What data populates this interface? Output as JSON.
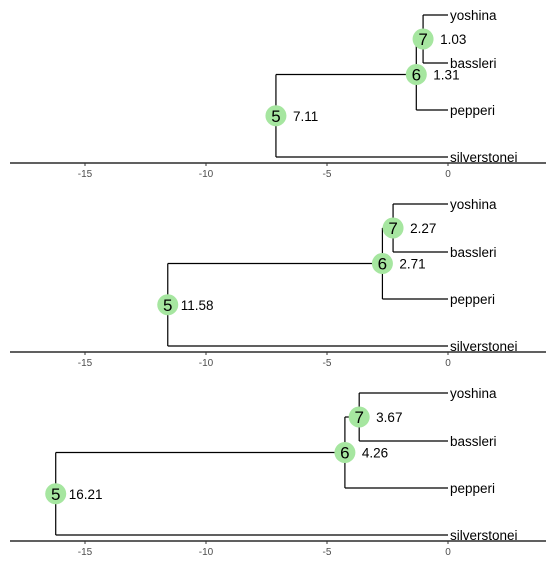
{
  "chart_data": [
    {
      "type": "tree",
      "xaxis": {
        "ticks": [
          -15,
          -10,
          -5,
          0
        ]
      },
      "tips": [
        "yoshina",
        "bassleri",
        "pepperi",
        "silverstonei"
      ],
      "nodes": [
        {
          "id": "7",
          "x": -1.03,
          "value": "1.03",
          "children": [
            "yoshina",
            "bassleri"
          ]
        },
        {
          "id": "6",
          "x": -1.31,
          "value": "1.31",
          "children": [
            "7",
            "pepperi"
          ]
        },
        {
          "id": "5",
          "x": -7.11,
          "value": "7.11",
          "children": [
            "6",
            "silverstonei"
          ]
        }
      ]
    },
    {
      "type": "tree",
      "xaxis": {
        "ticks": [
          -15,
          -10,
          -5,
          0
        ]
      },
      "tips": [
        "yoshina",
        "bassleri",
        "pepperi",
        "silverstonei"
      ],
      "nodes": [
        {
          "id": "7",
          "x": -2.27,
          "value": "2.27",
          "children": [
            "yoshina",
            "bassleri"
          ]
        },
        {
          "id": "6",
          "x": -2.71,
          "value": "2.71",
          "children": [
            "7",
            "pepperi"
          ]
        },
        {
          "id": "5",
          "x": -11.58,
          "value": "11.58",
          "children": [
            "6",
            "silverstonei"
          ]
        }
      ]
    },
    {
      "type": "tree",
      "xaxis": {
        "ticks": [
          -15,
          -10,
          -5,
          0
        ]
      },
      "tips": [
        "yoshina",
        "bassleri",
        "pepperi",
        "silverstonei"
      ],
      "nodes": [
        {
          "id": "7",
          "x": -3.67,
          "value": "3.67",
          "children": [
            "yoshina",
            "bassleri"
          ]
        },
        {
          "id": "6",
          "x": -4.26,
          "value": "4.26",
          "children": [
            "7",
            "pepperi"
          ]
        },
        {
          "id": "5",
          "x": -16.21,
          "value": "16.21",
          "children": [
            "6",
            "silverstonei"
          ]
        }
      ]
    }
  ],
  "colors": {
    "node_fill": "#a6e6a0",
    "line": "#000000",
    "tick_text": "#4d4d4d"
  }
}
